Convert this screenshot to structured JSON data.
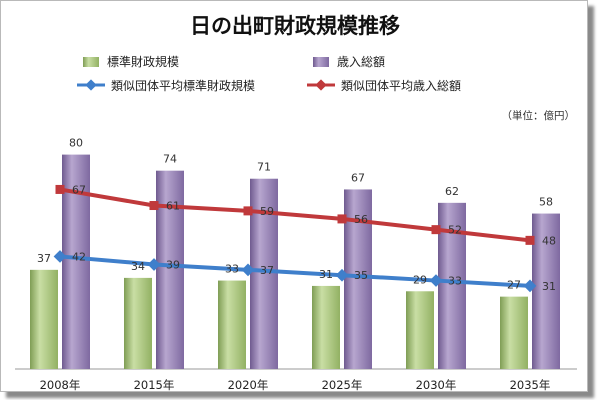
{
  "chart_data": {
    "type": "bar",
    "title": "日の出町財政規模推移",
    "unit_note": "（単位：億円）",
    "categories": [
      "2008年",
      "2015年",
      "2020年",
      "2025年",
      "2030年",
      "2035年"
    ],
    "series": [
      {
        "name": "標準財政規模",
        "kind": "bar",
        "values": [
          37,
          34,
          33,
          31,
          29,
          27
        ],
        "color": "#a9c77c"
      },
      {
        "name": "歳入総額",
        "kind": "bar",
        "values": [
          80,
          74,
          71,
          67,
          62,
          58
        ],
        "color": "#9884b3"
      },
      {
        "name": "類似団体平均標準財政規模",
        "kind": "line",
        "values": [
          42,
          39,
          37,
          35,
          33,
          31
        ],
        "color": "#3f7fcb"
      },
      {
        "name": "類似団体平均歳入総額",
        "kind": "line",
        "values": [
          67,
          61,
          59,
          56,
          52,
          48
        ],
        "color": "#c0393b"
      }
    ],
    "ylim": [
      0,
      100
    ],
    "grid": false,
    "legend_position": "top"
  }
}
